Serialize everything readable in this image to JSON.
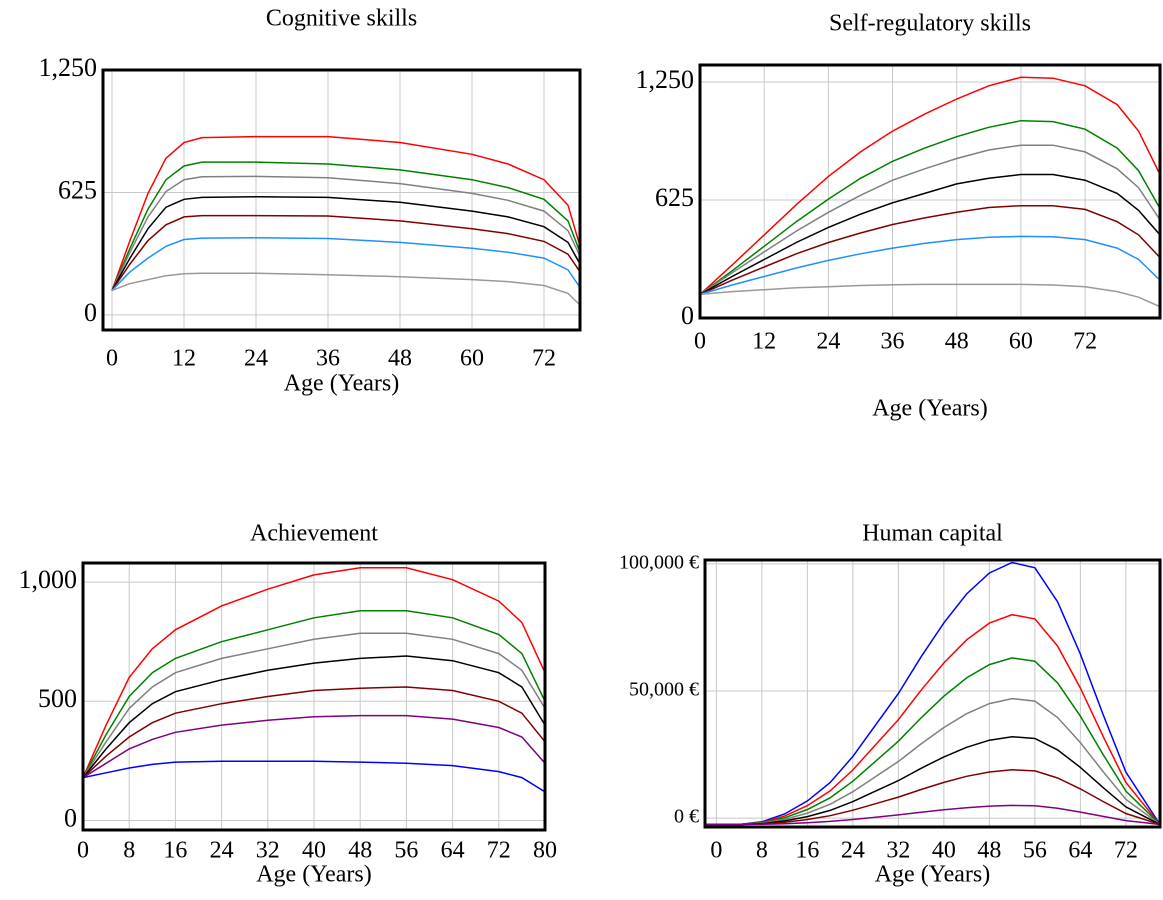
{
  "chart_data": [
    {
      "type": "line",
      "title": "Cognitive skills",
      "x_label": "Age (Years)",
      "x": [
        0,
        3,
        6,
        9,
        12,
        15,
        24,
        36,
        48,
        60,
        66,
        72,
        76,
        78
      ],
      "xlim": [
        -1.5,
        78
      ],
      "xticks": [
        0,
        12,
        24,
        36,
        48,
        60,
        72
      ],
      "ylim": [
        -77,
        1250
      ],
      "yticks": [
        0,
        625,
        {
          "value": 1250,
          "label": "1,250"
        }
      ],
      "grid": true,
      "series": [
        {
          "color": "#ff0000",
          "values": [
            125,
            380,
            620,
            800,
            880,
            905,
            910,
            910,
            880,
            820,
            770,
            690,
            560,
            350
          ]
        },
        {
          "color": "#008000",
          "values": [
            125,
            340,
            540,
            690,
            760,
            780,
            780,
            770,
            740,
            690,
            650,
            590,
            480,
            320
          ]
        },
        {
          "color": "#808080",
          "values": [
            125,
            320,
            500,
            630,
            690,
            705,
            707,
            700,
            670,
            620,
            585,
            530,
            430,
            300
          ]
        },
        {
          "color": "#000000",
          "values": [
            125,
            290,
            440,
            550,
            590,
            600,
            603,
            600,
            575,
            530,
            500,
            450,
            370,
            260
          ]
        },
        {
          "color": "#800000",
          "values": [
            125,
            260,
            380,
            460,
            500,
            507,
            507,
            505,
            480,
            440,
            415,
            375,
            310,
            220
          ]
        },
        {
          "color": "#1e90ff",
          "values": [
            125,
            220,
            290,
            350,
            385,
            392,
            394,
            390,
            370,
            340,
            320,
            290,
            230,
            140
          ]
        },
        {
          "color": "#999999",
          "values": [
            125,
            160,
            180,
            200,
            210,
            213,
            213,
            205,
            195,
            180,
            170,
            150,
            110,
            50
          ]
        }
      ]
    },
    {
      "type": "line",
      "title": "Self-regulatory skills",
      "x_label": "Age (Years)",
      "x": [
        0,
        6,
        12,
        18,
        24,
        30,
        36,
        42,
        48,
        54,
        60,
        66,
        72,
        78,
        82,
        86
      ],
      "xlim": [
        0,
        86
      ],
      "xticks": [
        0,
        12,
        24,
        36,
        48,
        60,
        72
      ],
      "ylim": [
        0,
        1340
      ],
      "yticks": [
        0,
        625,
        {
          "value": 1250,
          "label": "1,250"
        }
      ],
      "grid": true,
      "series": [
        {
          "color": "#ff0000",
          "values": [
            125,
            280,
            440,
            600,
            750,
            880,
            990,
            1080,
            1160,
            1230,
            1275,
            1270,
            1230,
            1130,
            990,
            760
          ]
        },
        {
          "color": "#008000",
          "values": [
            125,
            250,
            380,
            510,
            630,
            740,
            830,
            900,
            960,
            1010,
            1045,
            1040,
            1000,
            900,
            780,
            580
          ]
        },
        {
          "color": "#808080",
          "values": [
            125,
            240,
            350,
            460,
            560,
            650,
            730,
            790,
            845,
            890,
            915,
            915,
            880,
            790,
            690,
            520
          ]
        },
        {
          "color": "#000000",
          "values": [
            125,
            220,
            310,
            400,
            480,
            550,
            610,
            660,
            710,
            740,
            760,
            760,
            730,
            660,
            570,
            440
          ]
        },
        {
          "color": "#800000",
          "values": [
            125,
            200,
            270,
            340,
            400,
            450,
            495,
            530,
            560,
            585,
            595,
            595,
            575,
            510,
            440,
            320
          ]
        },
        {
          "color": "#1e90ff",
          "values": [
            125,
            175,
            220,
            265,
            305,
            340,
            370,
            395,
            415,
            428,
            432,
            430,
            415,
            370,
            310,
            200
          ]
        },
        {
          "color": "#999999",
          "values": [
            125,
            140,
            150,
            160,
            165,
            172,
            176,
            178,
            178,
            178,
            178,
            175,
            165,
            140,
            110,
            60
          ]
        }
      ]
    },
    {
      "type": "line",
      "title": "Achievement",
      "x_label": "Age (Years)",
      "x": [
        0,
        4,
        8,
        12,
        16,
        24,
        32,
        40,
        48,
        56,
        64,
        72,
        76,
        80
      ],
      "xlim": [
        0,
        80
      ],
      "xticks": [
        0,
        8,
        16,
        24,
        32,
        40,
        48,
        56,
        64,
        72,
        80
      ],
      "ylim": [
        -40,
        1080
      ],
      "yticks": [
        0,
        500,
        {
          "value": 1000,
          "label": "1,000"
        }
      ],
      "grid": true,
      "series": [
        {
          "color": "#ff0000",
          "values": [
            180,
            400,
            600,
            720,
            800,
            900,
            970,
            1030,
            1060,
            1060,
            1010,
            920,
            830,
            620
          ]
        },
        {
          "color": "#008000",
          "values": [
            180,
            360,
            520,
            620,
            680,
            750,
            800,
            850,
            880,
            880,
            850,
            780,
            700,
            500
          ]
        },
        {
          "color": "#808080",
          "values": [
            180,
            330,
            470,
            560,
            620,
            680,
            720,
            760,
            785,
            785,
            760,
            700,
            630,
            470
          ]
        },
        {
          "color": "#000000",
          "values": [
            180,
            300,
            410,
            490,
            540,
            590,
            630,
            660,
            680,
            690,
            670,
            620,
            560,
            400
          ]
        },
        {
          "color": "#800000",
          "values": [
            180,
            270,
            350,
            410,
            450,
            490,
            520,
            545,
            555,
            560,
            545,
            500,
            450,
            330
          ]
        },
        {
          "color": "#800080",
          "values": [
            180,
            240,
            300,
            340,
            370,
            400,
            420,
            435,
            440,
            440,
            425,
            390,
            350,
            240
          ]
        },
        {
          "color": "#0000ff",
          "values": [
            180,
            200,
            220,
            235,
            245,
            248,
            248,
            248,
            245,
            240,
            230,
            205,
            180,
            120
          ]
        }
      ]
    },
    {
      "type": "line",
      "title": "Human capital",
      "x_label": "Age (Years)",
      "x": [
        -2,
        4,
        8,
        12,
        16,
        20,
        24,
        28,
        32,
        36,
        40,
        44,
        48,
        52,
        56,
        60,
        64,
        68,
        72,
        78
      ],
      "xlim": [
        -2,
        78
      ],
      "xticks": [
        0,
        8,
        16,
        24,
        32,
        40,
        48,
        56,
        64,
        72
      ],
      "ylim": [
        -3500,
        101500
      ],
      "yticks": [
        {
          "value": 0,
          "label": "0 €"
        },
        {
          "value": 50000,
          "label": "50,000 €"
        },
        {
          "value": 100000,
          "label": "100,000 €"
        }
      ],
      "grid": true,
      "series": [
        {
          "color": "#0000ff",
          "values": [
            -2500,
            -2500,
            -1470,
            1620,
            6770,
            13980,
            24280,
            36640,
            49000,
            63420,
            76810,
            88140,
            96380,
            100500,
            98440,
            85050,
            64450,
            40760,
            18100,
            -2500
          ]
        },
        {
          "color": "#ff0000",
          "values": [
            -2500,
            -2500,
            -1675,
            800,
            4925,
            10700,
            18950,
            28850,
            38750,
            50300,
            61025,
            70100,
            76700,
            80000,
            78350,
            67625,
            51125,
            32150,
            14000,
            -2500
          ]
        },
        {
          "color": "#008000",
          "values": [
            -2500,
            -2500,
            -1845,
            120,
            3395,
            7980,
            14530,
            22390,
            30250,
            39420,
            47935,
            55140,
            60380,
            63000,
            61690,
            53175,
            40075,
            25010,
            10600,
            -2500
          ]
        },
        {
          "color": "#808080",
          "values": [
            -2500,
            -2500,
            -2005,
            -520,
            1955,
            5420,
            10370,
            16310,
            22250,
            29180,
            35615,
            41060,
            45020,
            47000,
            46010,
            39575,
            29675,
            18290,
            7400,
            -2500
          ]
        },
        {
          "color": "#000000",
          "values": [
            -2500,
            -2500,
            -2155,
            -1120,
            605,
            3020,
            6470,
            10610,
            14750,
            19580,
            24065,
            27860,
            30620,
            32000,
            31310,
            26825,
            19925,
            11990,
            4400,
            -2500
          ]
        },
        {
          "color": "#800000",
          "values": [
            -2500,
            -2500,
            -2285,
            -1640,
            -565,
            940,
            3090,
            5670,
            8250,
            11260,
            14055,
            16420,
            18140,
            19000,
            18570,
            15775,
            11475,
            6530,
            1800,
            -2500
          ]
        },
        {
          "color": "#800080",
          "values": [
            -2500,
            -2500,
            -2425,
            -2200,
            -1825,
            -1300,
            -550,
            350,
            1250,
            2300,
            3275,
            4100,
            4700,
            5000,
            4850,
            3875,
            2375,
            650,
            -1000,
            -2500
          ]
        }
      ]
    }
  ]
}
